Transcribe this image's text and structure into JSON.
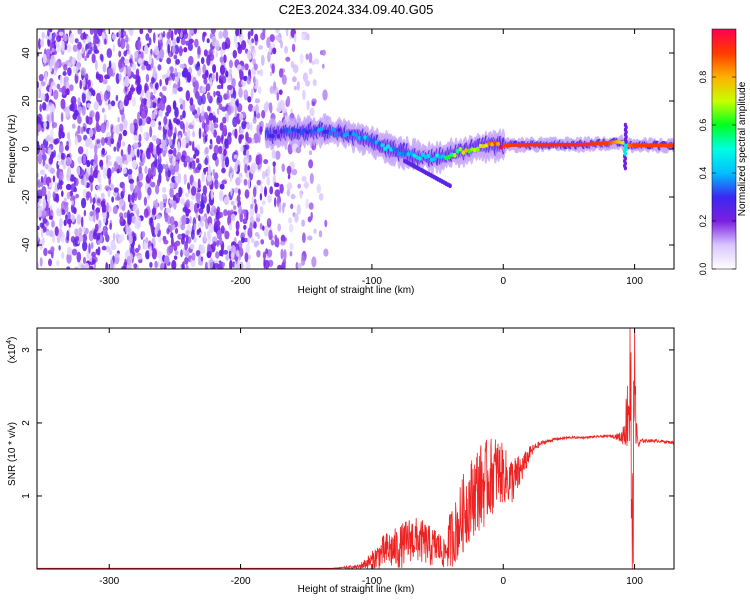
{
  "title": "C2E3.2024.334.09.40.G05",
  "chart_data": [
    {
      "type": "heatmap",
      "name": "spectrogram",
      "xlabel": "Height of straight line (km)",
      "ylabel": "Frequency (Hz)",
      "xlim": [
        -355,
        130
      ],
      "ylim": [
        -50,
        50
      ],
      "xticks": [
        -300,
        -200,
        -100,
        0,
        100
      ],
      "yticks": [
        -40,
        -20,
        0,
        20,
        40
      ],
      "colorbar": {
        "label": "Normalized spectral amplitude",
        "range": [
          0.0,
          1.0
        ],
        "ticks": [
          0.0,
          0.2,
          0.4,
          0.6,
          0.8
        ],
        "colormap": [
          "#ffffff",
          "#7b1fe0",
          "#3b28f0",
          "#00ffff",
          "#00ff20",
          "#ffff00",
          "#ff7a00",
          "#ff0030"
        ]
      },
      "ridge": {
        "x": [
          -180,
          -160,
          -140,
          -125,
          -110,
          -95,
          -80,
          -65,
          -50,
          -40,
          -30,
          -20,
          -10,
          0,
          20,
          40,
          60,
          80,
          87,
          92,
          95,
          100,
          130
        ],
        "y": [
          6,
          7,
          7.5,
          7,
          5,
          2,
          -1,
          -3,
          -4,
          -2,
          -1,
          1,
          1.5,
          1.5,
          1.8,
          1.8,
          1.8,
          2.5,
          3,
          2.5,
          1.5,
          1.5,
          1.5
        ],
        "amplitude": [
          0.3,
          0.32,
          0.35,
          0.35,
          0.38,
          0.4,
          0.42,
          0.42,
          0.45,
          0.6,
          0.7,
          0.78,
          0.85,
          0.9,
          0.92,
          0.93,
          0.93,
          0.9,
          0.8,
          0.7,
          0.85,
          0.9,
          0.9
        ]
      },
      "noise_region_x": [
        -355,
        -130
      ]
    },
    {
      "type": "line",
      "name": "snr",
      "xlabel": "Height of straight line (km)",
      "ylabel": "SNR (10 * v/v)",
      "scale_label": "(x10",
      "scale_exponent": "4",
      "scale_close": ")",
      "xlim": [
        -355,
        130
      ],
      "ylim": [
        0,
        3.3
      ],
      "xticks": [
        -300,
        -200,
        -100,
        0,
        100
      ],
      "yticks": [
        1,
        2,
        3
      ],
      "color": "#ee2222",
      "series": [
        {
          "name": "SNR",
          "x": [
            -355,
            -130,
            -110,
            -100,
            -90,
            -80,
            -70,
            -60,
            -55,
            -50,
            -45,
            -40,
            -35,
            -30,
            -25,
            -20,
            -15,
            -10,
            -5,
            0,
            5,
            10,
            15,
            20,
            25,
            30,
            40,
            50,
            60,
            70,
            80,
            85,
            90,
            93,
            95,
            97,
            98,
            99,
            100,
            101,
            103,
            105,
            110,
            120,
            130
          ],
          "y": [
            0.01,
            0.01,
            0.03,
            0.12,
            0.25,
            0.28,
            0.42,
            0.36,
            0.3,
            0.32,
            0.2,
            0.42,
            0.55,
            0.78,
            0.95,
            1.1,
            1.15,
            1.25,
            1.35,
            1.3,
            1.2,
            1.25,
            1.4,
            1.58,
            1.68,
            1.73,
            1.78,
            1.8,
            1.8,
            1.81,
            1.82,
            1.82,
            1.8,
            1.95,
            2.2,
            2.6,
            0.3,
            1.2,
            3.1,
            1.9,
            1.7,
            1.75,
            1.76,
            1.75,
            1.73
          ],
          "noise_amp": [
            0,
            0,
            0.03,
            0.12,
            0.25,
            0.3,
            0.32,
            0.3,
            0.28,
            0.25,
            0.2,
            0.42,
            0.45,
            0.55,
            0.55,
            0.6,
            0.6,
            0.55,
            0.5,
            0.4,
            0.35,
            0.3,
            0.18,
            0.1,
            0.05,
            0.03,
            0.02,
            0.015,
            0.015,
            0.015,
            0.015,
            0.03,
            0.08,
            0.3,
            0.6,
            0.9,
            0.6,
            1.0,
            0.5,
            0.2,
            0.08,
            0.03,
            0.02,
            0.02,
            0.02
          ]
        }
      ]
    }
  ]
}
